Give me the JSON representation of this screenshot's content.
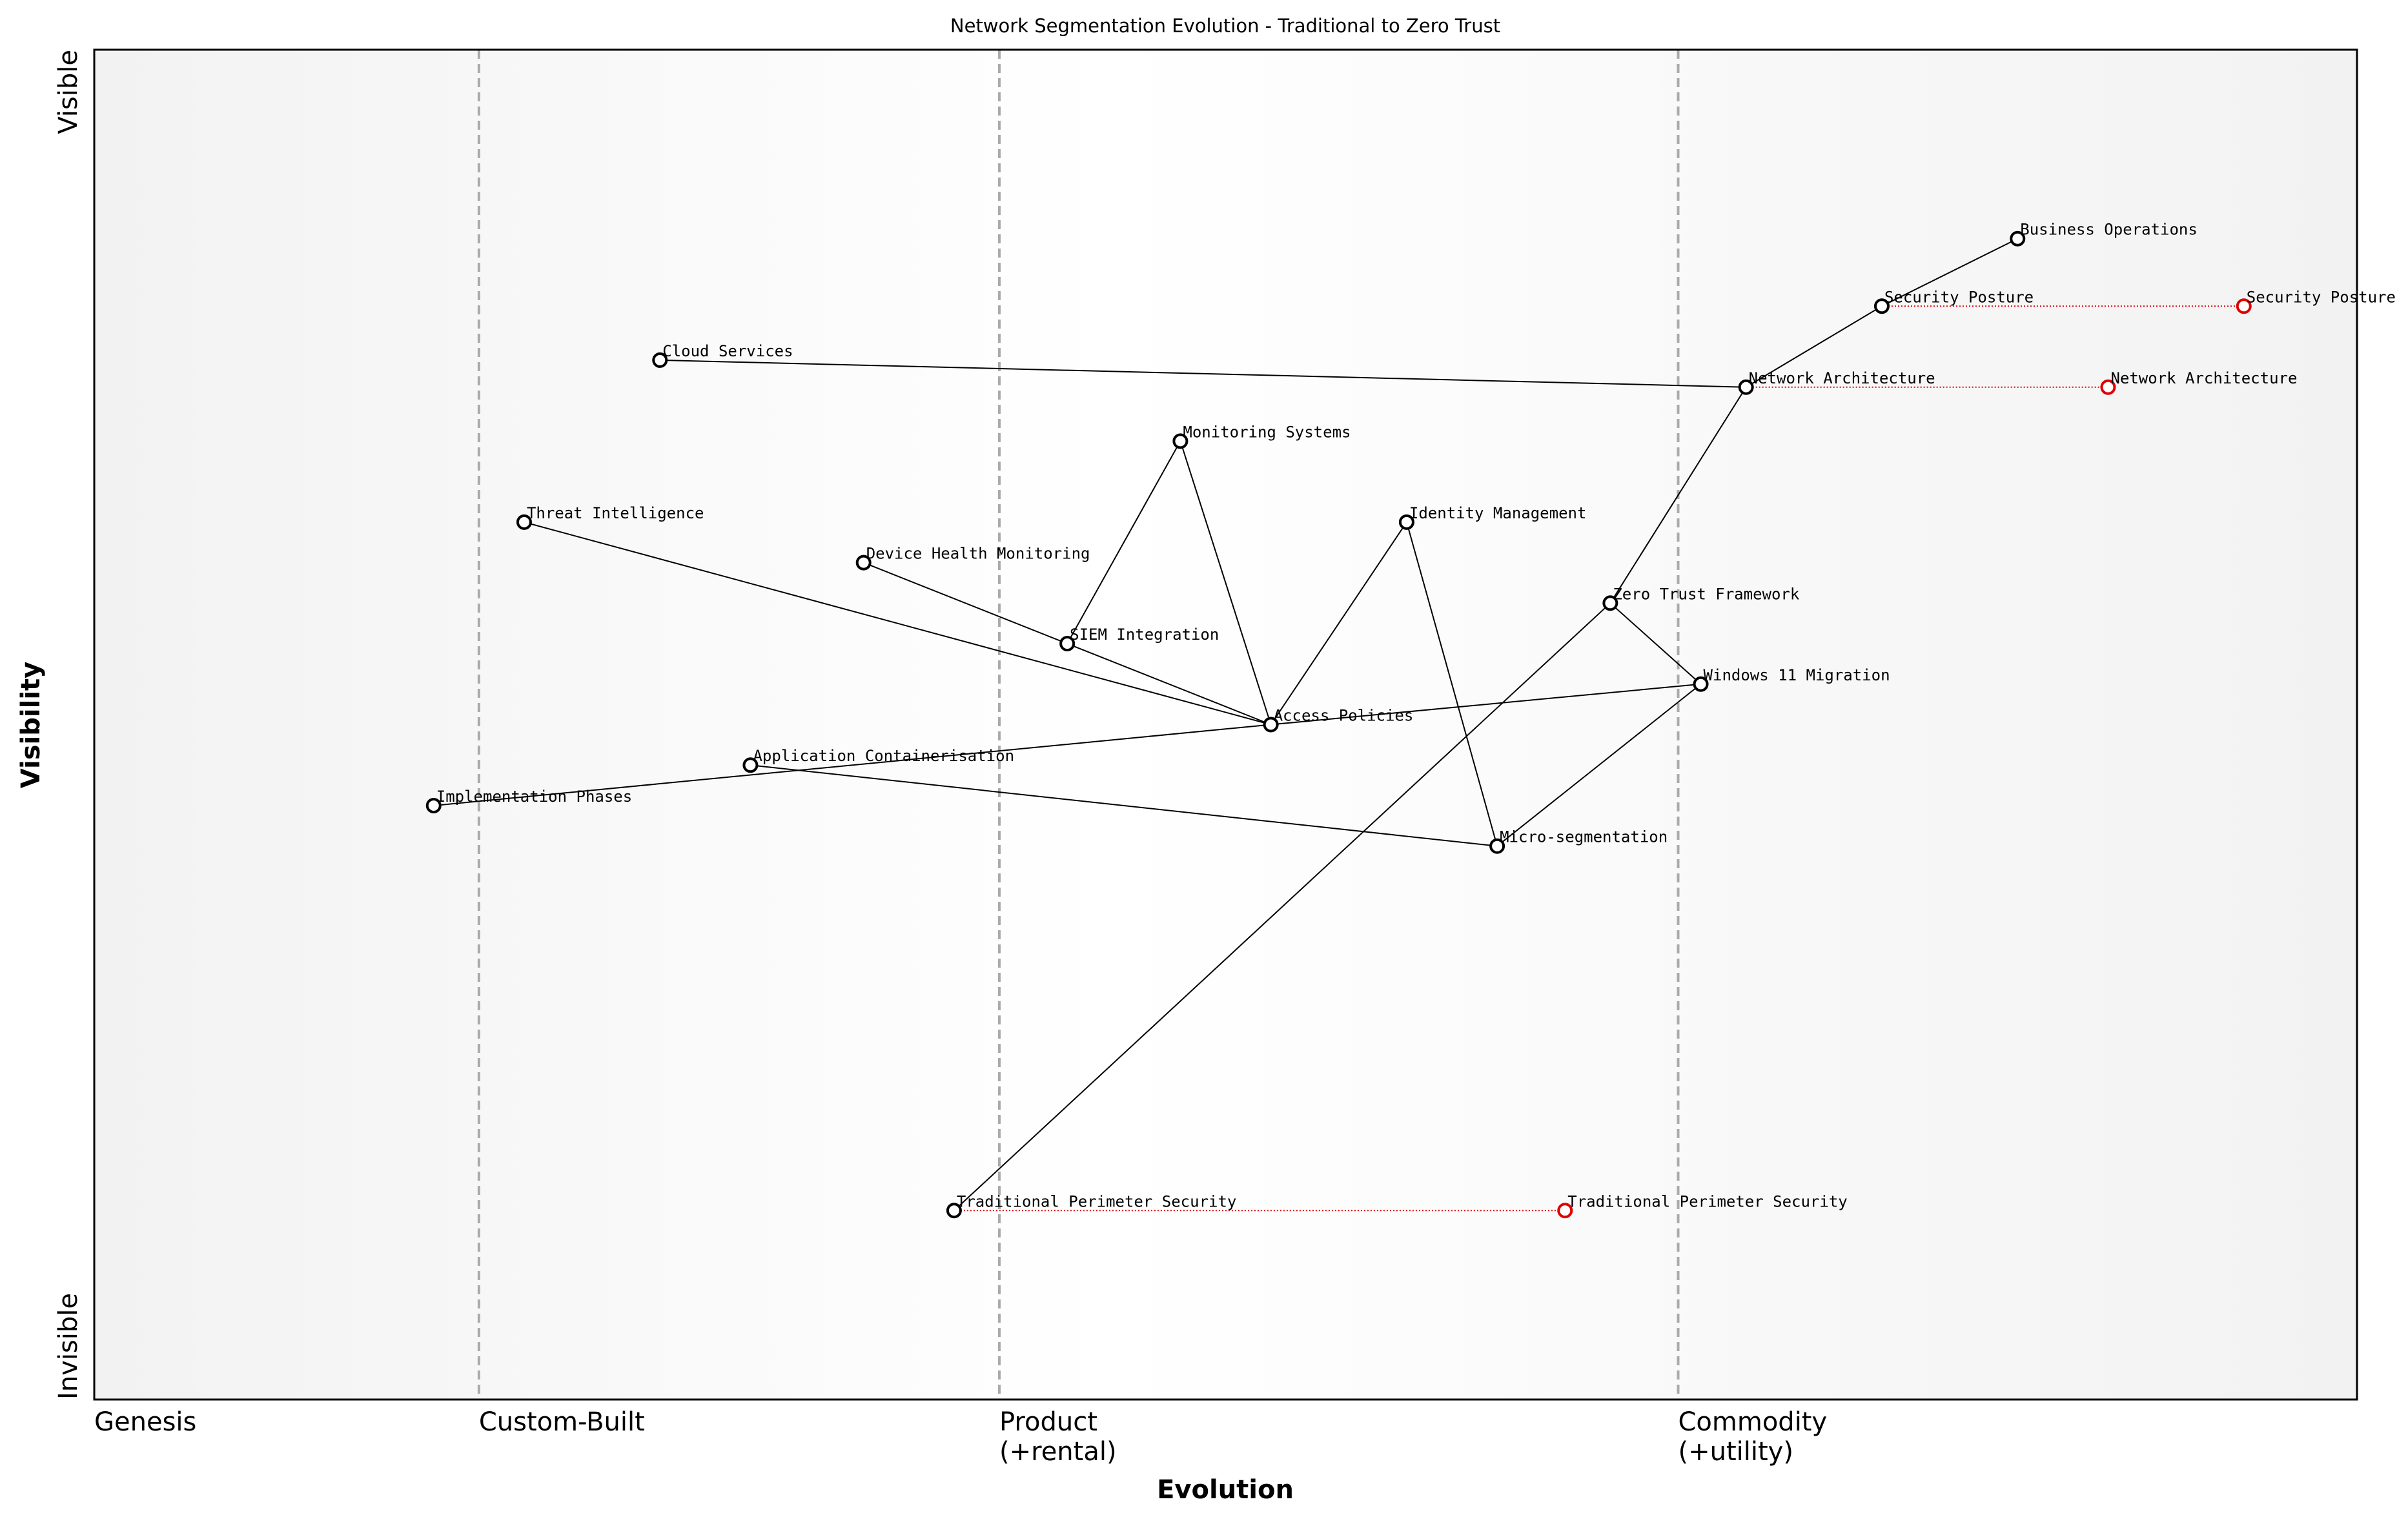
{
  "chart_data": {
    "type": "wardley",
    "title": "Network Segmentation Evolution - Traditional to Zero Trust",
    "x_label": "Evolution",
    "y_label": "Visibility",
    "y_ends": [
      "Invisible",
      "Visible"
    ],
    "xlim": [
      0,
      1
    ],
    "ylim": [
      0,
      1
    ],
    "stages": [
      {
        "value": 0,
        "label": [
          "Genesis"
        ]
      },
      {
        "value": 0.17,
        "label": [
          "Custom-Built"
        ]
      },
      {
        "value": 0.4,
        "label": [
          "Product",
          "(+rental)"
        ]
      },
      {
        "value": 0.7,
        "label": [
          "Commodity",
          "(+utility)"
        ]
      }
    ],
    "components": [
      {
        "name": "Business Operations",
        "x": 0.85,
        "y": 0.86
      },
      {
        "name": "Security Posture",
        "x": 0.79,
        "y": 0.81
      },
      {
        "name": "Network Architecture",
        "x": 0.73,
        "y": 0.75
      },
      {
        "name": "Cloud Services",
        "x": 0.25,
        "y": 0.77
      },
      {
        "name": "Monitoring Systems",
        "x": 0.48,
        "y": 0.71
      },
      {
        "name": "Identity Management",
        "x": 0.58,
        "y": 0.65
      },
      {
        "name": "Threat Intelligence",
        "x": 0.19,
        "y": 0.65
      },
      {
        "name": "Device Health Monitoring",
        "x": 0.34,
        "y": 0.62
      },
      {
        "name": "Zero Trust Framework",
        "x": 0.67,
        "y": 0.59
      },
      {
        "name": "SIEM Integration",
        "x": 0.43,
        "y": 0.56
      },
      {
        "name": "Windows 11 Migration",
        "x": 0.71,
        "y": 0.53
      },
      {
        "name": "Access Policies",
        "x": 0.52,
        "y": 0.5
      },
      {
        "name": "Application Containerisation",
        "x": 0.29,
        "y": 0.47
      },
      {
        "name": "Implementation Phases",
        "x": 0.15,
        "y": 0.44
      },
      {
        "name": "Micro-segmentation",
        "x": 0.62,
        "y": 0.41
      },
      {
        "name": "Traditional Perimeter Security",
        "x": 0.38,
        "y": 0.14
      }
    ],
    "evolved": [
      {
        "name": "Security Posture",
        "x": 0.95,
        "y": 0.81
      },
      {
        "name": "Network Architecture",
        "x": 0.89,
        "y": 0.75
      },
      {
        "name": "Traditional Perimeter Security",
        "x": 0.65,
        "y": 0.14
      }
    ],
    "links": [
      [
        "Business Operations",
        "Security Posture"
      ],
      [
        "Security Posture",
        "Network Architecture"
      ],
      [
        "Network Architecture",
        "Cloud Services"
      ],
      [
        "Network Architecture",
        "Zero Trust Framework"
      ],
      [
        "Zero Trust Framework",
        "Windows 11 Migration"
      ],
      [
        "Zero Trust Framework",
        "Traditional Perimeter Security"
      ],
      [
        "Windows 11 Migration",
        "Micro-segmentation"
      ],
      [
        "Windows 11 Migration",
        "Access Policies"
      ],
      [
        "Access Policies",
        "Implementation Phases"
      ],
      [
        "Access Policies",
        "Threat Intelligence"
      ],
      [
        "Access Policies",
        "SIEM Integration"
      ],
      [
        "SIEM Integration",
        "Device Health Monitoring"
      ],
      [
        "SIEM Integration",
        "Monitoring Systems"
      ],
      [
        "Monitoring Systems",
        "Access Policies"
      ],
      [
        "Access Policies",
        "Identity Management"
      ],
      [
        "Identity Management",
        "Micro-segmentation"
      ],
      [
        "Application Containerisation",
        "Micro-segmentation"
      ]
    ],
    "component_color": "#000000",
    "evolved_color": "#e00000"
  }
}
